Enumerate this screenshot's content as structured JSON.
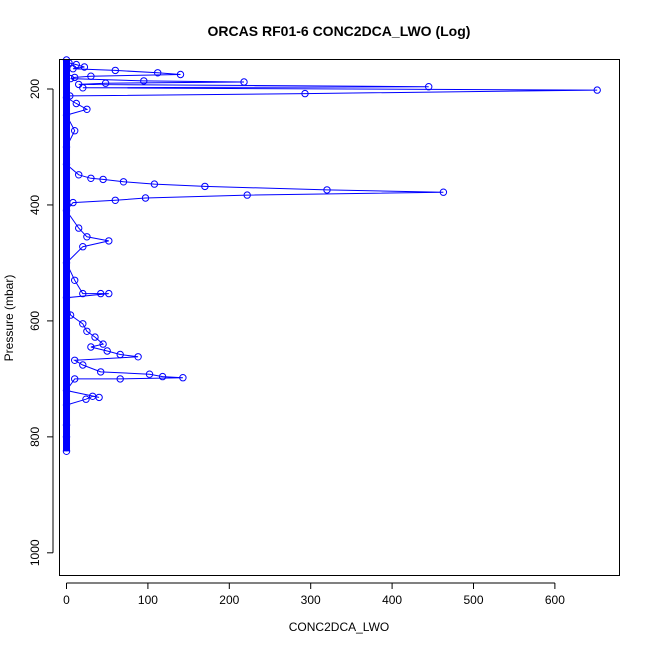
{
  "chart_data": {
    "type": "scatter",
    "title": "ORCAS RF01-6 CONC2DCA_LWO (Log)",
    "xlabel": "CONC2DCA_LWO",
    "ylabel": "Pressure (mbar)",
    "xlim": [
      -8,
      680
    ],
    "ylim": [
      1040,
      150
    ],
    "y_reversed": true,
    "xticks": [
      0,
      100,
      200,
      300,
      400,
      500,
      600
    ],
    "yticks": [
      200,
      400,
      600,
      800,
      1000
    ],
    "grid": false,
    "legend": "none",
    "colors": {
      "series": "#0000ff",
      "frame": "#000000"
    },
    "series": [
      {
        "style": "line-points",
        "points": [
          {
            "x": 0,
            "y": 150
          },
          {
            "x": 3,
            "y": 155
          },
          {
            "x": 12,
            "y": 158
          },
          {
            "x": 22,
            "y": 162
          },
          {
            "x": 8,
            "y": 165
          },
          {
            "x": 60,
            "y": 168
          },
          {
            "x": 112,
            "y": 172
          },
          {
            "x": 140,
            "y": 175
          },
          {
            "x": 30,
            "y": 178
          },
          {
            "x": 10,
            "y": 180
          },
          {
            "x": 5,
            "y": 182
          },
          {
            "x": 95,
            "y": 186
          },
          {
            "x": 218,
            "y": 188
          },
          {
            "x": 48,
            "y": 190
          },
          {
            "x": 15,
            "y": 192
          },
          {
            "x": 445,
            "y": 196
          },
          {
            "x": 20,
            "y": 198
          },
          {
            "x": 652,
            "y": 202
          },
          {
            "x": 293,
            "y": 208
          },
          {
            "x": 4,
            "y": 212
          },
          {
            "x": 0,
            "y": 215
          },
          {
            "x": 12,
            "y": 225
          },
          {
            "x": 25,
            "y": 235
          },
          {
            "x": 0,
            "y": 245
          },
          {
            "x": 10,
            "y": 272
          },
          {
            "x": 0,
            "y": 300
          },
          {
            "x": 0,
            "y": 330
          },
          {
            "x": 15,
            "y": 348
          },
          {
            "x": 30,
            "y": 354
          },
          {
            "x": 45,
            "y": 356
          },
          {
            "x": 70,
            "y": 360
          },
          {
            "x": 108,
            "y": 364
          },
          {
            "x": 170,
            "y": 368
          },
          {
            "x": 320,
            "y": 374
          },
          {
            "x": 463,
            "y": 378
          },
          {
            "x": 222,
            "y": 383
          },
          {
            "x": 97,
            "y": 388
          },
          {
            "x": 60,
            "y": 392
          },
          {
            "x": 8,
            "y": 396
          },
          {
            "x": 0,
            "y": 410
          },
          {
            "x": 15,
            "y": 440
          },
          {
            "x": 25,
            "y": 455
          },
          {
            "x": 52,
            "y": 462
          },
          {
            "x": 20,
            "y": 472
          },
          {
            "x": 0,
            "y": 500
          },
          {
            "x": 10,
            "y": 530
          },
          {
            "x": 20,
            "y": 553
          },
          {
            "x": 42,
            "y": 553
          },
          {
            "x": 52,
            "y": 553
          },
          {
            "x": 0,
            "y": 560
          },
          {
            "x": 5,
            "y": 590
          },
          {
            "x": 20,
            "y": 605
          },
          {
            "x": 25,
            "y": 618
          },
          {
            "x": 35,
            "y": 628
          },
          {
            "x": 45,
            "y": 640
          },
          {
            "x": 30,
            "y": 645
          },
          {
            "x": 50,
            "y": 652
          },
          {
            "x": 66,
            "y": 658
          },
          {
            "x": 88,
            "y": 662
          },
          {
            "x": 10,
            "y": 668
          },
          {
            "x": 20,
            "y": 676
          },
          {
            "x": 42,
            "y": 688
          },
          {
            "x": 102,
            "y": 692
          },
          {
            "x": 118,
            "y": 696
          },
          {
            "x": 143,
            "y": 698
          },
          {
            "x": 66,
            "y": 700
          },
          {
            "x": 10,
            "y": 700
          },
          {
            "x": 0,
            "y": 720
          },
          {
            "x": 40,
            "y": 732
          },
          {
            "x": 32,
            "y": 730
          },
          {
            "x": 24,
            "y": 735
          },
          {
            "x": 0,
            "y": 745
          },
          {
            "x": 0,
            "y": 780
          },
          {
            "x": 0,
            "y": 800
          },
          {
            "x": 0,
            "y": 825
          }
        ]
      }
    ]
  }
}
